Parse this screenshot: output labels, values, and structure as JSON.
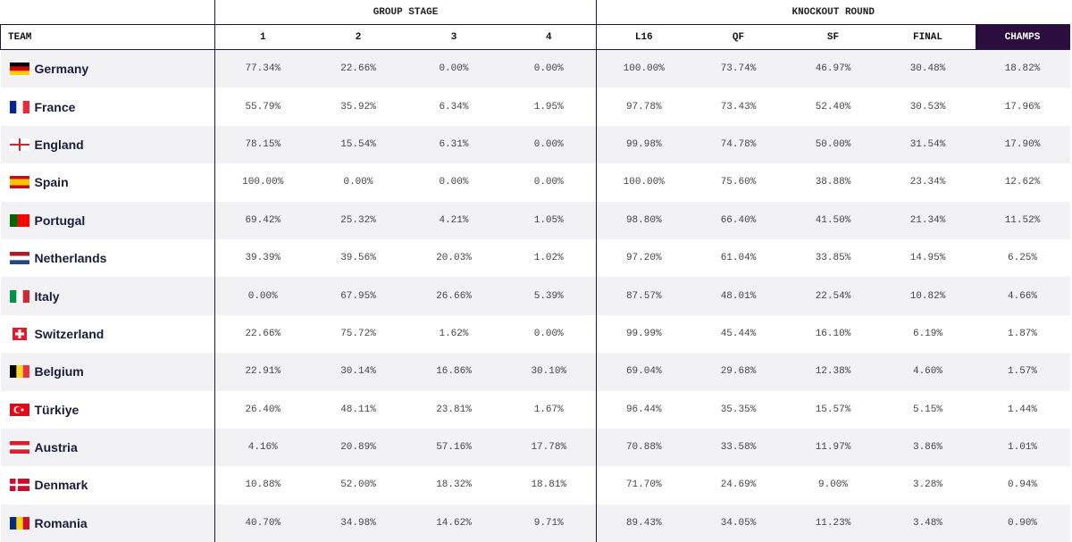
{
  "table": {
    "group_headers": [
      "GROUP STAGE",
      "KNOCKOUT ROUND"
    ],
    "columns": [
      "TEAM",
      "1",
      "2",
      "3",
      "4",
      "L16",
      "QF",
      "SF",
      "FINAL",
      "CHAMPS"
    ],
    "rows": [
      [
        "Germany",
        "77.34%",
        "22.66%",
        "0.00%",
        "0.00%",
        "100.00%",
        "73.74%",
        "46.97%",
        "30.48%",
        "18.82%"
      ],
      [
        "France",
        "55.79%",
        "35.92%",
        "6.34%",
        "1.95%",
        "97.78%",
        "73.43%",
        "52.40%",
        "30.53%",
        "17.96%"
      ],
      [
        "England",
        "78.15%",
        "15.54%",
        "6.31%",
        "0.00%",
        "99.98%",
        "74.78%",
        "50.00%",
        "31.54%",
        "17.90%"
      ],
      [
        "Spain",
        "100.00%",
        "0.00%",
        "0.00%",
        "0.00%",
        "100.00%",
        "75.60%",
        "38.88%",
        "23.34%",
        "12.62%"
      ],
      [
        "Portugal",
        "69.42%",
        "25.32%",
        "4.21%",
        "1.05%",
        "98.80%",
        "66.40%",
        "41.50%",
        "21.34%",
        "11.52%"
      ],
      [
        "Netherlands",
        "39.39%",
        "39.56%",
        "20.03%",
        "1.02%",
        "97.20%",
        "61.04%",
        "33.85%",
        "14.95%",
        "6.25%"
      ],
      [
        "Italy",
        "0.00%",
        "67.95%",
        "26.66%",
        "5.39%",
        "87.57%",
        "48.01%",
        "22.54%",
        "10.82%",
        "4.66%"
      ],
      [
        "Switzerland",
        "22.66%",
        "75.72%",
        "1.62%",
        "0.00%",
        "99.99%",
        "45.44%",
        "16.10%",
        "6.19%",
        "1.87%"
      ],
      [
        "Belgium",
        "22.91%",
        "30.14%",
        "16.86%",
        "30.10%",
        "69.04%",
        "29.68%",
        "12.38%",
        "4.60%",
        "1.57%"
      ],
      [
        "Türkiye",
        "26.40%",
        "48.11%",
        "23.81%",
        "1.67%",
        "96.44%",
        "35.35%",
        "15.57%",
        "5.15%",
        "1.44%"
      ],
      [
        "Austria",
        "4.16%",
        "20.89%",
        "57.16%",
        "17.78%",
        "70.88%",
        "33.58%",
        "11.97%",
        "3.86%",
        "1.01%"
      ],
      [
        "Denmark",
        "10.88%",
        "52.00%",
        "18.32%",
        "18.81%",
        "71.70%",
        "24.69%",
        "9.00%",
        "3.28%",
        "0.94%"
      ],
      [
        "Romania",
        "40.70%",
        "34.98%",
        "14.62%",
        "9.71%",
        "89.43%",
        "34.05%",
        "11.23%",
        "3.48%",
        "0.90%"
      ]
    ]
  }
}
